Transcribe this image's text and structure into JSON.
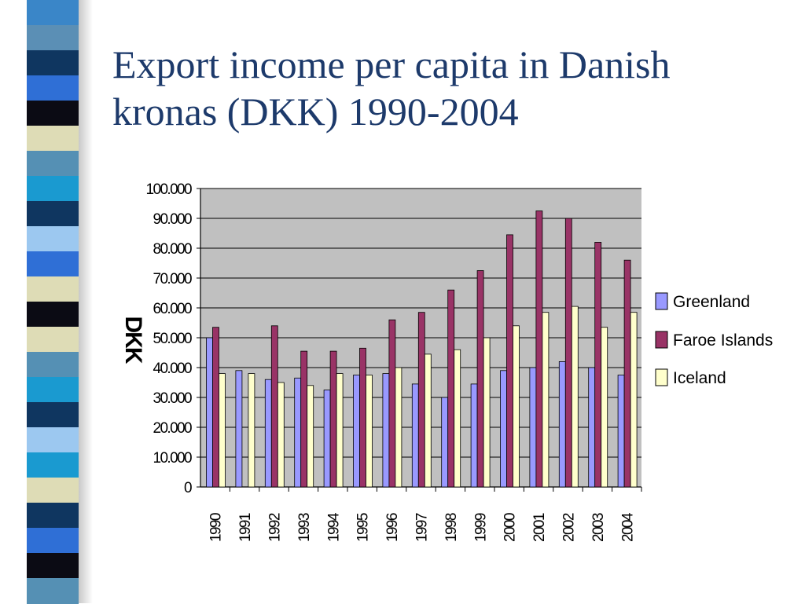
{
  "slide": {
    "title_line1": "Export income per capita in Danish",
    "title_line2": "kronas (DKK) 1990-2004"
  },
  "stripe": {
    "colors": [
      "#3a86c8",
      "#5b8fb5",
      "#0f3660",
      "#2f6fd6",
      "#0b0b14",
      "#dedcb6",
      "#5590b4",
      "#1a9ad0",
      "#0f3660",
      "#9cc8f0",
      "#2f6fd6",
      "#dedcb6",
      "#0b0b14",
      "#dedcb6",
      "#5590b4",
      "#1a9ad0",
      "#0f3660",
      "#9cc8f0",
      "#1a9ad0",
      "#dedcb6",
      "#0f3660",
      "#2f6fd6",
      "#0b0b14",
      "#5590b4"
    ]
  },
  "chart_data": {
    "type": "bar",
    "title": "",
    "xlabel": "",
    "ylabel": "DKK",
    "ylim": [
      0,
      100000
    ],
    "y_ticks": [
      0,
      10000,
      20000,
      30000,
      40000,
      50000,
      60000,
      70000,
      80000,
      90000,
      100000
    ],
    "y_tick_labels": [
      "0",
      "10.000",
      "20.000",
      "30.000",
      "40.000",
      "50.000",
      "60.000",
      "70.000",
      "80.000",
      "90.000",
      "100.000"
    ],
    "categories": [
      "1990",
      "1991",
      "1992",
      "1993",
      "1994",
      "1995",
      "1996",
      "1997",
      "1998",
      "1999",
      "2000",
      "2001",
      "2002",
      "2003",
      "2004"
    ],
    "series": [
      {
        "name": "Greenland",
        "color": "#9999ff",
        "values": [
          50000,
          39000,
          36000,
          36500,
          32500,
          37500,
          38000,
          34500,
          30000,
          34500,
          39000,
          40000,
          42000,
          40000,
          37500
        ]
      },
      {
        "name": "Faroe Islands",
        "color": "#993366",
        "values": [
          53500,
          0,
          54000,
          45500,
          45500,
          46500,
          56000,
          58500,
          66000,
          72500,
          84500,
          92500,
          90000,
          82000,
          76000
        ]
      },
      {
        "name": "Iceland",
        "color": "#ffffcc",
        "values": [
          38000,
          38000,
          35000,
          34000,
          38000,
          37500,
          40000,
          44500,
          46000,
          50000,
          54000,
          58500,
          60500,
          53500,
          58500
        ]
      }
    ],
    "grid": true,
    "plot_background": "#c0c0c0",
    "legend_placement": "right"
  }
}
